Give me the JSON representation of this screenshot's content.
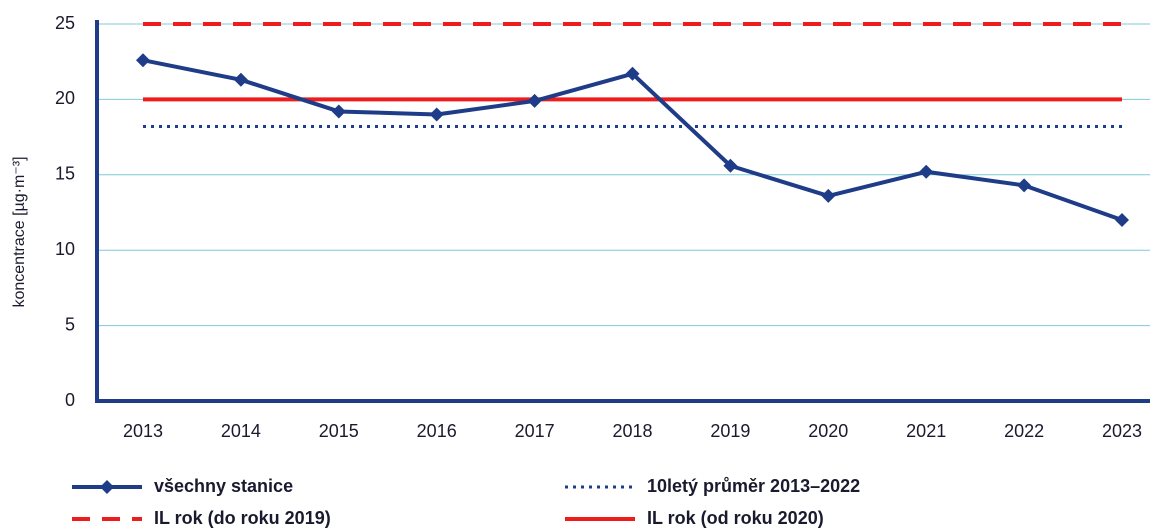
{
  "chart_data": {
    "type": "line",
    "ylabel": "koncentrace [µg·m⁻³]",
    "categories": [
      "2013",
      "2014",
      "2015",
      "2016",
      "2017",
      "2018",
      "2019",
      "2020",
      "2021",
      "2022",
      "2023"
    ],
    "series": [
      {
        "name": "všechny stanice",
        "color": "#1f3c88",
        "style": "solid",
        "marker": "diamond",
        "values": [
          22.6,
          21.3,
          19.2,
          19.0,
          19.9,
          21.7,
          15.6,
          13.6,
          15.2,
          14.3,
          12.0
        ]
      },
      {
        "name": "10letý průměr 2013–2022",
        "color": "#1f3c88",
        "style": "dotted",
        "values": [
          18.2,
          18.2,
          18.2,
          18.2,
          18.2,
          18.2,
          18.2,
          18.2,
          18.2,
          18.2,
          18.2
        ]
      },
      {
        "name": "IL rok (do roku 2019)",
        "color": "#ee1c1c",
        "style": "dashed",
        "values": [
          25,
          25,
          25,
          25,
          25,
          25,
          25,
          25,
          25,
          25,
          25
        ]
      },
      {
        "name": "IL rok (od roku 2020)",
        "color": "#ee1c1c",
        "style": "solid",
        "values": [
          20,
          20,
          20,
          20,
          20,
          20,
          20,
          20,
          20,
          20,
          20
        ]
      }
    ],
    "ylim": [
      0,
      25
    ],
    "yticks": [
      0,
      5,
      10,
      15,
      20,
      25
    ],
    "grid": true
  }
}
